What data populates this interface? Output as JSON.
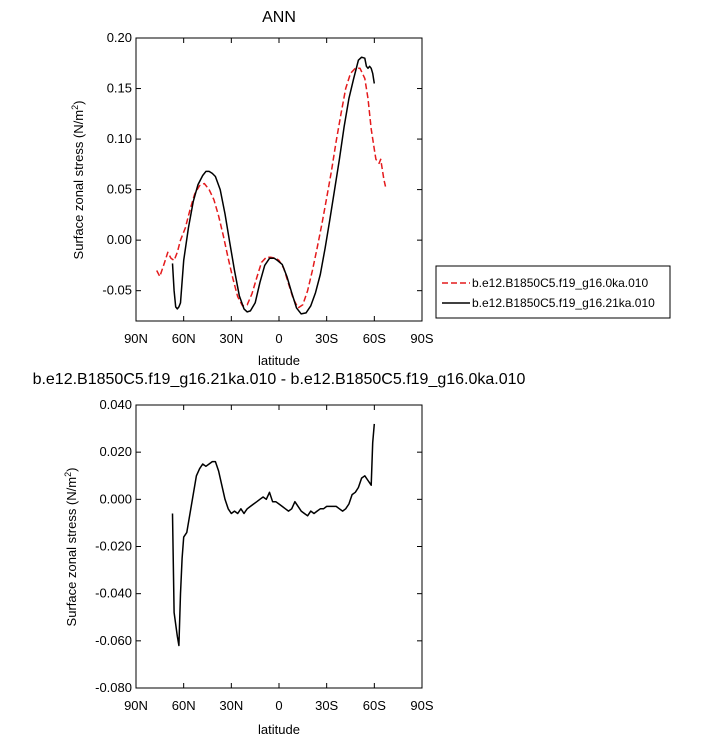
{
  "chart_data": [
    {
      "type": "line",
      "title": "ANN",
      "xlabel": "latitude",
      "ylabel": "Surface zonal stress (N/m",
      "ylabel_sup": "2",
      "ylabel_close": ")",
      "xlim": [
        90,
        -90
      ],
      "ylim": [
        -0.08,
        0.2
      ],
      "x_ticks": [
        90,
        60,
        30,
        0,
        -30,
        -60,
        -90
      ],
      "x_tick_labels": [
        "90N",
        "60N",
        "30N",
        "0",
        "30S",
        "60S",
        "90S"
      ],
      "y_ticks": [
        0.2,
        0.15,
        0.1,
        0.05,
        0.0,
        -0.05
      ],
      "y_tick_labels": [
        "0.20",
        "0.15",
        "0.10",
        "0.05",
        "0.00",
        "-0.05"
      ],
      "legend_position": "right",
      "series": [
        {
          "name": "b.e12.B1850C5.f19_g16.0ka.010",
          "color": "#e41a1c",
          "dash": "dashed",
          "x": [
            77,
            75,
            72,
            70,
            68,
            66,
            64,
            62,
            59,
            56,
            53,
            50,
            47,
            44,
            41,
            38,
            35,
            32,
            29,
            26,
            23,
            20,
            17,
            14,
            11,
            8,
            5,
            2,
            0,
            -3,
            -6,
            -9,
            -12,
            -15,
            -18,
            -21,
            -24,
            -27,
            -30,
            -33,
            -36,
            -39,
            -42,
            -45,
            -48,
            -51,
            -54,
            -56,
            -58,
            -60,
            -61,
            -62,
            -63,
            -64,
            -65,
            -66,
            -67
          ],
          "y": [
            -0.03,
            -0.036,
            -0.022,
            -0.012,
            -0.018,
            -0.02,
            -0.012,
            0.0,
            0.012,
            0.03,
            0.046,
            0.054,
            0.056,
            0.05,
            0.04,
            0.024,
            0.004,
            -0.018,
            -0.038,
            -0.056,
            -0.065,
            -0.064,
            -0.053,
            -0.037,
            -0.022,
            -0.017,
            -0.017,
            -0.018,
            -0.02,
            -0.028,
            -0.043,
            -0.058,
            -0.067,
            -0.064,
            -0.05,
            -0.03,
            -0.008,
            0.016,
            0.042,
            0.068,
            0.098,
            0.125,
            0.15,
            0.165,
            0.17,
            0.17,
            0.16,
            0.14,
            0.11,
            0.09,
            0.08,
            0.078,
            0.076,
            0.08,
            0.07,
            0.06,
            0.053
          ]
        },
        {
          "name": "b.e12.B1850C5.f19_g16.21ka.010",
          "color": "#000000",
          "dash": "solid",
          "x": [
            67,
            66,
            65,
            64,
            63,
            62,
            60,
            57,
            54,
            51,
            48,
            46,
            44,
            42,
            40,
            37,
            34,
            31,
            28,
            25,
            22,
            20,
            18,
            15,
            12,
            9,
            6,
            3,
            1,
            -2,
            -5,
            -8,
            -11,
            -14,
            -17,
            -20,
            -23,
            -26,
            -29,
            -32,
            -35,
            -38,
            -41,
            -44,
            -47,
            -50,
            -52,
            -54,
            -55,
            -56,
            -57,
            -58,
            -59,
            -60
          ],
          "y": [
            -0.023,
            -0.05,
            -0.066,
            -0.068,
            -0.066,
            -0.062,
            -0.02,
            0.012,
            0.038,
            0.055,
            0.064,
            0.068,
            0.068,
            0.066,
            0.063,
            0.05,
            0.026,
            -0.002,
            -0.03,
            -0.055,
            -0.068,
            -0.071,
            -0.07,
            -0.062,
            -0.042,
            -0.025,
            -0.018,
            -0.018,
            -0.02,
            -0.024,
            -0.036,
            -0.052,
            -0.067,
            -0.073,
            -0.072,
            -0.065,
            -0.052,
            -0.034,
            -0.008,
            0.02,
            0.05,
            0.08,
            0.112,
            0.14,
            0.16,
            0.178,
            0.181,
            0.18,
            0.172,
            0.17,
            0.172,
            0.17,
            0.165,
            0.155
          ]
        }
      ]
    },
    {
      "type": "line",
      "title": "b.e12.B1850C5.f19_g16.21ka.010 - b.e12.B1850C5.f19_g16.0ka.010",
      "xlabel": "latitude",
      "ylabel": "Surface zonal stress (N/m",
      "ylabel_sup": "2",
      "ylabel_close": ")",
      "xlim": [
        90,
        -90
      ],
      "ylim": [
        -0.08,
        0.04
      ],
      "x_ticks": [
        90,
        60,
        30,
        0,
        -30,
        -60,
        -90
      ],
      "x_tick_labels": [
        "90N",
        "60N",
        "30N",
        "0",
        "30S",
        "60S",
        "90S"
      ],
      "y_ticks": [
        0.04,
        0.02,
        0.0,
        -0.02,
        -0.04,
        -0.06,
        -0.08
      ],
      "y_tick_labels": [
        "0.040",
        "0.020",
        "0.000",
        "-0.020",
        "-0.040",
        "-0.060",
        "-0.080"
      ],
      "series": [
        {
          "color": "#000000",
          "dash": "solid",
          "x": [
            67,
            66,
            64,
            63,
            62,
            61,
            60,
            58,
            56,
            54,
            52,
            50,
            48,
            46,
            44,
            42,
            40,
            38,
            36,
            34,
            32,
            30,
            28,
            26,
            24,
            22,
            21,
            20,
            18,
            16,
            14,
            12,
            10,
            8,
            6,
            4,
            2,
            0,
            -2,
            -4,
            -6,
            -8,
            -10,
            -12,
            -14,
            -16,
            -18,
            -20,
            -22,
            -24,
            -26,
            -28,
            -30,
            -32,
            -34,
            -36,
            -38,
            -40,
            -42,
            -44,
            -46,
            -48,
            -50,
            -52,
            -54,
            -56,
            -57,
            -58,
            -59,
            -60
          ],
          "y": [
            -0.006,
            -0.048,
            -0.058,
            -0.062,
            -0.04,
            -0.025,
            -0.016,
            -0.014,
            -0.006,
            0.002,
            0.01,
            0.013,
            0.015,
            0.014,
            0.015,
            0.016,
            0.016,
            0.012,
            0.006,
            0.0,
            -0.004,
            -0.006,
            -0.005,
            -0.006,
            -0.004,
            -0.006,
            -0.005,
            -0.004,
            -0.003,
            -0.002,
            -0.001,
            0.0,
            0.001,
            0.0,
            0.003,
            -0.001,
            -0.001,
            -0.002,
            -0.003,
            -0.004,
            -0.005,
            -0.004,
            -0.001,
            -0.003,
            -0.005,
            -0.006,
            -0.007,
            -0.005,
            -0.006,
            -0.005,
            -0.004,
            -0.004,
            -0.003,
            -0.003,
            -0.003,
            -0.003,
            -0.004,
            -0.005,
            -0.004,
            -0.002,
            0.002,
            0.003,
            0.005,
            0.009,
            0.01,
            0.008,
            0.007,
            0.006,
            0.024,
            0.032
          ]
        }
      ]
    }
  ]
}
